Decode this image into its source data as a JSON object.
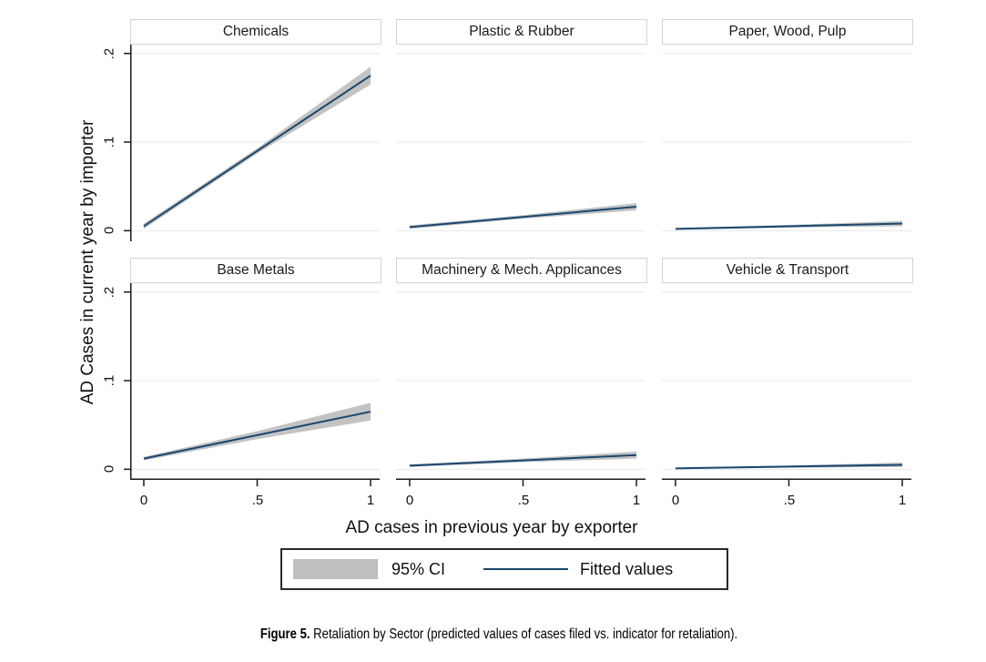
{
  "figure": {
    "caption_bold": "Figure 5.",
    "caption_rest": " Retaliation by Sector (predicted values of cases filed vs. indicator for retaliation)."
  },
  "colors": {
    "fitted_line": "#1a476f",
    "ci_band": "#c3c3c3",
    "legend_swatch": "#bfbfbf",
    "gridline": "#e8e8e8",
    "axis": "#1a1a1a",
    "title_box_border": "#d4d4d4"
  },
  "chart_data": {
    "type": "line",
    "layout": "2x3 small multiples, shared axes",
    "x": [
      0,
      0.5,
      1
    ],
    "xlabel": "AD cases in previous year by exporter",
    "ylabel": "AD Cases in current year by importer",
    "xticks": [
      0,
      0.5,
      1
    ],
    "xtick_labels": [
      "0",
      ".5",
      "1"
    ],
    "yticks": [
      0,
      0.1,
      0.2
    ],
    "ytick_labels": [
      "0",
      ".1",
      ".2"
    ],
    "xlim": [
      -0.06,
      1.04
    ],
    "ylim": [
      -0.012,
      0.211
    ],
    "grid": "horizontal gridlines at y ticks",
    "legend": {
      "position": "bottom center",
      "entries": [
        {
          "label": "95% CI",
          "type": "area",
          "color": "#bfbfbf"
        },
        {
          "label": "Fitted values",
          "type": "line",
          "color": "#1a476f"
        }
      ]
    },
    "panels": [
      {
        "title": "Chemicals",
        "fitted": [
          0.005,
          0.09,
          0.175
        ],
        "ci_lower": [
          0.002,
          0.087,
          0.165
        ],
        "ci_upper": [
          0.008,
          0.093,
          0.185
        ]
      },
      {
        "title": "Plastic & Rubber",
        "fitted": [
          0.004,
          0.0155,
          0.027
        ],
        "ci_lower": [
          0.002,
          0.0135,
          0.023
        ],
        "ci_upper": [
          0.006,
          0.0175,
          0.031
        ]
      },
      {
        "title": "Paper, Wood, Pulp",
        "fitted": [
          0.002,
          0.005,
          0.008
        ],
        "ci_lower": [
          0.001,
          0.0035,
          0.005
        ],
        "ci_upper": [
          0.003,
          0.0065,
          0.011
        ]
      },
      {
        "title": "Base Metals",
        "fitted": [
          0.012,
          0.0385,
          0.065
        ],
        "ci_lower": [
          0.01,
          0.034,
          0.055
        ],
        "ci_upper": [
          0.014,
          0.043,
          0.075
        ]
      },
      {
        "title": "Machinery & Mech. Applicances",
        "fitted": [
          0.004,
          0.01,
          0.016
        ],
        "ci_lower": [
          0.0025,
          0.008,
          0.012
        ],
        "ci_upper": [
          0.0055,
          0.012,
          0.02
        ]
      },
      {
        "title": "Vehicle & Transport",
        "fitted": [
          0.001,
          0.003,
          0.005
        ],
        "ci_lower": [
          0.0003,
          0.0018,
          0.0025
        ],
        "ci_upper": [
          0.0017,
          0.0042,
          0.0075
        ]
      }
    ]
  }
}
